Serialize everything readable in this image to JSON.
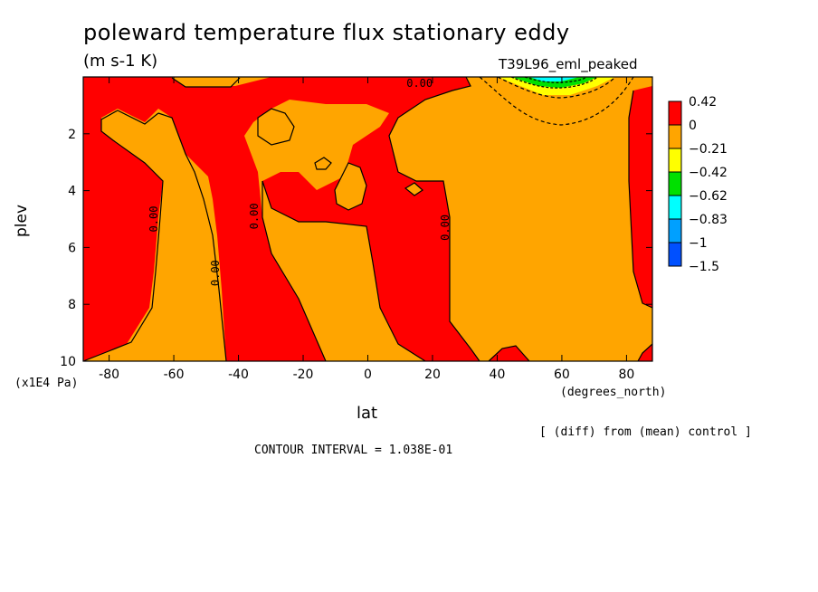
{
  "chart_data": {
    "type": "contour",
    "title": "poleward temperature flux stationary eddy",
    "units": "(m s-1 K)",
    "run_label": "T39L96_eml_peaked",
    "xlabel": "lat",
    "x_unit": "(degrees_north)",
    "ylabel": "plev",
    "y_unit": "(x1E4 Pa)",
    "xlim": [
      -88,
      88
    ],
    "ylim": [
      10,
      0
    ],
    "x_ticks": [
      "-80",
      "-60",
      "-40",
      "-20",
      "0",
      "20",
      "40",
      "60",
      "80"
    ],
    "x_tick_values": [
      -80,
      -60,
      -40,
      -20,
      0,
      20,
      40,
      60,
      80
    ],
    "y_ticks": [
      "2",
      "4",
      "6",
      "8",
      "10"
    ],
    "y_tick_values": [
      2,
      4,
      6,
      8,
      10
    ],
    "legend": {
      "levels": [
        "0.42",
        "0",
        "−0.21",
        "−0.42",
        "−0.62",
        "−0.83",
        "−1",
        "−1.5"
      ],
      "colors": [
        "#ff0000",
        "#ffa500",
        "#ffff00",
        "#00e000",
        "#00ffff",
        "#00a0ff",
        "#0050ff"
      ]
    },
    "contour_labels": [
      {
        "text": "0.00",
        "lat": -65,
        "p": 5.0
      },
      {
        "text": "0.00",
        "lat": -46,
        "p": 6.9
      },
      {
        "text": "0.00",
        "lat": -34,
        "p": 4.9
      },
      {
        "text": "0.00",
        "lat": 25,
        "p": 5.3
      },
      {
        "text": "0.00",
        "lat": 16,
        "p": 0.35
      }
    ],
    "footnote": "[ (diff) from (mean) control ]",
    "contour_interval": "CONTOUR INTERVAL = 1.038E-01"
  },
  "colors": {
    "positive": "#ff0000",
    "near_zero": "#ffa500",
    "negative_1": "#ffff00",
    "negative_2": "#00e000"
  }
}
